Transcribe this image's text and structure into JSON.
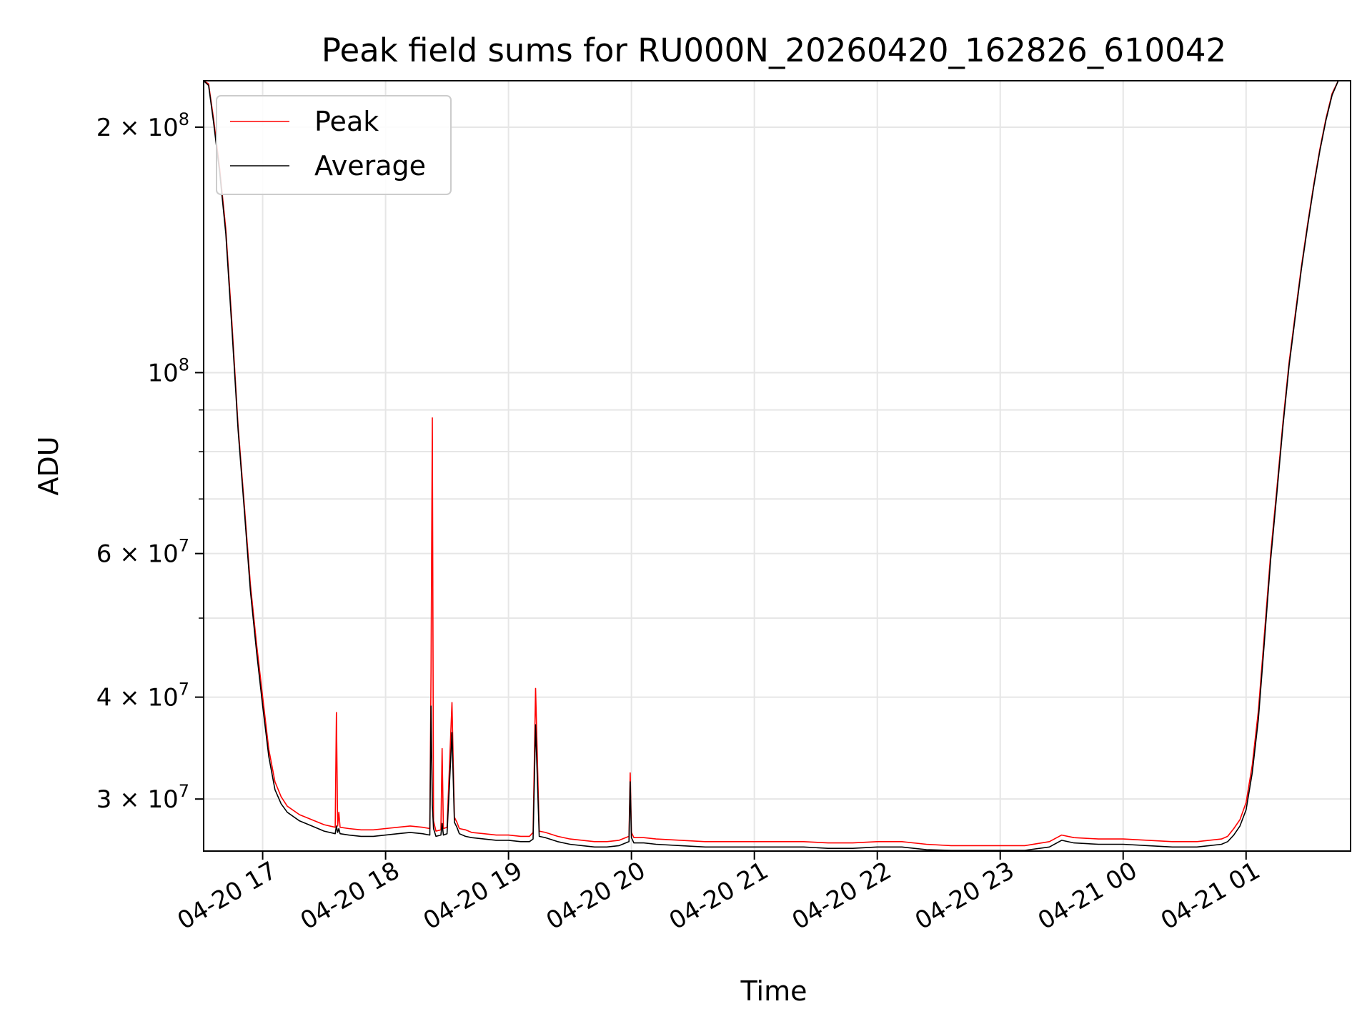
{
  "chart_data": {
    "type": "line",
    "title": "Peak field sums for RU000N_20260420_162826_610042",
    "xlabel": "Time",
    "ylabel": "ADU",
    "yscale": "log",
    "ylim": [
      25900000,
      228000000
    ],
    "xlim_hours": [
      16.52,
      25.85
    ],
    "grid": true,
    "legend_position": "upper-left",
    "x_ticks": [
      {
        "hour": 17,
        "label": "04-20 17"
      },
      {
        "hour": 18,
        "label": "04-20 18"
      },
      {
        "hour": 19,
        "label": "04-20 19"
      },
      {
        "hour": 20,
        "label": "04-20 20"
      },
      {
        "hour": 21,
        "label": "04-20 21"
      },
      {
        "hour": 22,
        "label": "04-20 22"
      },
      {
        "hour": 23,
        "label": "04-20 23"
      },
      {
        "hour": 24,
        "label": "04-21 00"
      },
      {
        "hour": 25,
        "label": "04-21 01"
      }
    ],
    "y_major_ticks": [
      {
        "value": 30000000,
        "mantissa": "3",
        "exponent": "7"
      },
      {
        "value": 40000000,
        "mantissa": "4",
        "exponent": "7"
      },
      {
        "value": 60000000,
        "mantissa": "6",
        "exponent": "7"
      },
      {
        "value": 100000000,
        "mantissa": "",
        "exponent": "8"
      },
      {
        "value": 200000000,
        "mantissa": "2",
        "exponent": "8"
      }
    ],
    "y_minor_ticks": [
      50000000,
      70000000,
      80000000,
      90000000
    ],
    "series": [
      {
        "name": "Peak",
        "color": "#ff0000",
        "x_hours": [
          16.52,
          16.56,
          16.6,
          16.65,
          16.7,
          16.75,
          16.8,
          16.85,
          16.9,
          16.95,
          17.0,
          17.05,
          17.1,
          17.15,
          17.2,
          17.3,
          17.4,
          17.5,
          17.59,
          17.6,
          17.61,
          17.62,
          17.63,
          17.7,
          17.8,
          17.9,
          18.0,
          18.1,
          18.2,
          18.3,
          18.36,
          18.37,
          18.38,
          18.39,
          18.41,
          18.45,
          18.46,
          18.47,
          18.5,
          18.54,
          18.56,
          18.58,
          18.6,
          18.65,
          18.7,
          18.8,
          18.9,
          19.0,
          19.1,
          19.17,
          19.2,
          19.22,
          19.25,
          19.3,
          19.4,
          19.5,
          19.6,
          19.7,
          19.8,
          19.9,
          19.98,
          19.99,
          20.0,
          20.02,
          20.1,
          20.2,
          20.4,
          20.6,
          20.8,
          21.0,
          21.2,
          21.4,
          21.6,
          21.8,
          22.0,
          22.2,
          22.4,
          22.6,
          22.8,
          23.0,
          23.2,
          23.4,
          23.5,
          23.6,
          23.8,
          24.0,
          24.2,
          24.4,
          24.5,
          24.6,
          24.7,
          24.8,
          24.85,
          24.9,
          24.95,
          25.0,
          25.05,
          25.1,
          25.15,
          25.2,
          25.25,
          25.3,
          25.35,
          25.4,
          25.45,
          25.5,
          25.55,
          25.6,
          25.65,
          25.7,
          25.75,
          25.8,
          25.85
        ],
        "values": [
          228000000,
          226000000,
          205000000,
          178000000,
          150000000,
          115000000,
          86000000,
          69000000,
          55000000,
          46500000,
          40000000,
          34500000,
          31500000,
          30200000,
          29400000,
          28700000,
          28300000,
          27900000,
          27700000,
          38300000,
          27800000,
          28900000,
          27700000,
          27600000,
          27500000,
          27500000,
          27600000,
          27700000,
          27800000,
          27700000,
          27600000,
          43000000,
          88000000,
          28200000,
          27400000,
          27500000,
          34600000,
          27600000,
          27700000,
          39400000,
          28500000,
          28100000,
          27600000,
          27500000,
          27300000,
          27200000,
          27100000,
          27100000,
          27000000,
          27000000,
          27300000,
          41000000,
          27400000,
          27300000,
          27000000,
          26800000,
          26700000,
          26600000,
          26600000,
          26700000,
          27000000,
          32300000,
          27300000,
          26900000,
          26900000,
          26800000,
          26700000,
          26600000,
          26600000,
          26600000,
          26600000,
          26600000,
          26500000,
          26500000,
          26600000,
          26600000,
          26400000,
          26300000,
          26300000,
          26300000,
          26300000,
          26600000,
          27100000,
          26900000,
          26800000,
          26800000,
          26700000,
          26600000,
          26600000,
          26600000,
          26700000,
          26800000,
          27000000,
          27600000,
          28300000,
          29700000,
          33000000,
          38500000,
          48000000,
          60000000,
          72000000,
          87000000,
          103000000,
          118000000,
          135000000,
          152000000,
          170000000,
          188000000,
          205000000,
          220000000,
          228000000,
          228000000,
          228000000
        ]
      },
      {
        "name": "Average",
        "color": "#000000",
        "x_hours": [
          16.52,
          16.56,
          16.6,
          16.65,
          16.7,
          16.75,
          16.8,
          16.85,
          16.9,
          16.95,
          17.0,
          17.05,
          17.1,
          17.15,
          17.2,
          17.3,
          17.4,
          17.5,
          17.59,
          17.6,
          17.61,
          17.62,
          17.63,
          17.7,
          17.8,
          17.9,
          18.0,
          18.1,
          18.2,
          18.3,
          18.36,
          18.37,
          18.38,
          18.39,
          18.41,
          18.45,
          18.46,
          18.47,
          18.5,
          18.54,
          18.56,
          18.58,
          18.6,
          18.65,
          18.7,
          18.8,
          18.9,
          19.0,
          19.1,
          19.17,
          19.2,
          19.22,
          19.25,
          19.3,
          19.4,
          19.5,
          19.6,
          19.7,
          19.8,
          19.9,
          19.98,
          19.99,
          20.0,
          20.02,
          20.1,
          20.2,
          20.4,
          20.6,
          20.8,
          21.0,
          21.2,
          21.4,
          21.6,
          21.8,
          22.0,
          22.2,
          22.4,
          22.6,
          22.8,
          23.0,
          23.2,
          23.4,
          23.5,
          23.6,
          23.8,
          24.0,
          24.2,
          24.4,
          24.5,
          24.6,
          24.7,
          24.8,
          24.85,
          24.9,
          24.95,
          25.0,
          25.05,
          25.1,
          25.15,
          25.2,
          25.25,
          25.3,
          25.35,
          25.4,
          25.45,
          25.5,
          25.55,
          25.6,
          25.65,
          25.7,
          25.75,
          25.8,
          25.85
        ],
        "values": [
          228000000,
          225000000,
          203000000,
          176000000,
          148000000,
          113000000,
          85000000,
          68000000,
          54000000,
          45500000,
          39000000,
          33800000,
          30800000,
          29600000,
          28900000,
          28200000,
          27800000,
          27400000,
          27200000,
          27800000,
          27300000,
          27600000,
          27200000,
          27100000,
          27000000,
          27000000,
          27100000,
          27200000,
          27300000,
          27200000,
          27100000,
          39000000,
          29500000,
          27600000,
          27000000,
          27100000,
          28000000,
          27100000,
          27200000,
          36200000,
          28100000,
          27700000,
          27200000,
          27000000,
          26900000,
          26800000,
          26700000,
          26700000,
          26600000,
          26600000,
          26800000,
          37000000,
          27000000,
          26900000,
          26600000,
          26400000,
          26300000,
          26200000,
          26200000,
          26300000,
          26600000,
          31500000,
          26900000,
          26500000,
          26500000,
          26400000,
          26300000,
          26200000,
          26200000,
          26200000,
          26200000,
          26200000,
          26100000,
          26100000,
          26200000,
          26200000,
          26000000,
          25950000,
          25950000,
          25950000,
          25950000,
          26200000,
          26700000,
          26500000,
          26400000,
          26400000,
          26300000,
          26200000,
          26200000,
          26200000,
          26300000,
          26400000,
          26600000,
          27100000,
          27800000,
          29100000,
          32300000,
          37600000,
          47000000,
          59000000,
          71000000,
          86000000,
          102000000,
          117000000,
          134000000,
          151000000,
          169000000,
          187000000,
          204000000,
          219000000,
          228000000,
          228000000,
          228000000
        ]
      }
    ]
  }
}
